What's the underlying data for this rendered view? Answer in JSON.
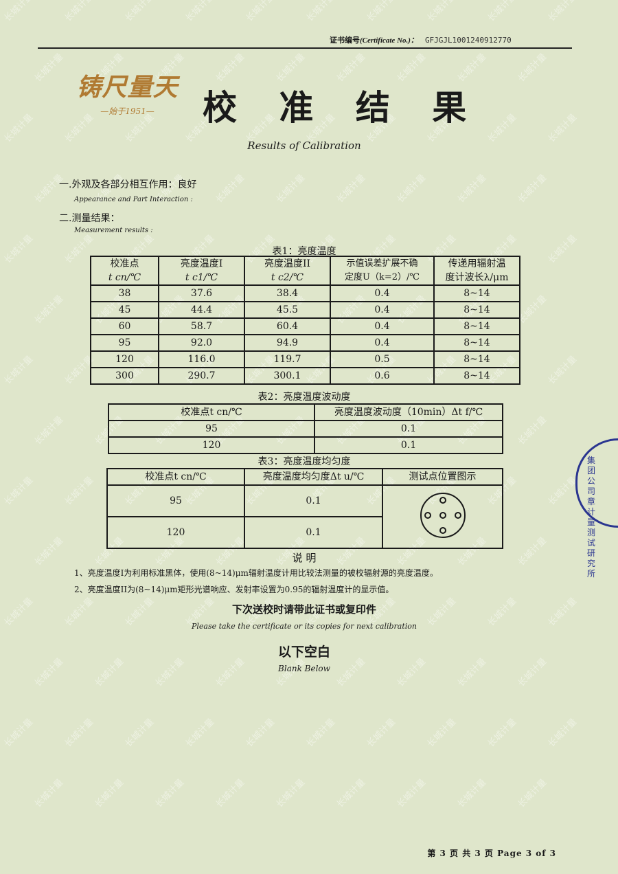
{
  "header": {
    "cert_label_cn": "证书编号",
    "cert_label_en": "(Certificate No.)：",
    "cert_no": "GFJGJL1001240912770"
  },
  "logo": {
    "text": "铸尺量天",
    "since": "—始于1951—"
  },
  "watermark": "长城计量",
  "title": "校 准 结 果",
  "subtitle": "Results of Calibration",
  "section1": {
    "cn": "一.外观及各部分相互作用：良好",
    "en": "Appearance and Part Interaction :"
  },
  "section2": {
    "cn": "二.测量结果：",
    "en": "Measurement results :"
  },
  "table1": {
    "caption": "表1：亮度温度",
    "headers": [
      [
        "校准点",
        "t cn/℃"
      ],
      [
        "亮度温度I",
        "t c1/℃"
      ],
      [
        "亮度温度II",
        "t c2/℃"
      ],
      [
        "示值误差扩展不确",
        "定度U（k=2）/℃"
      ],
      [
        "传递用辐射温",
        "度计波长λ/μm"
      ]
    ],
    "rows": [
      [
        "38",
        "37.6",
        "38.4",
        "0.4",
        "8~14"
      ],
      [
        "45",
        "44.4",
        "45.5",
        "0.4",
        "8~14"
      ],
      [
        "60",
        "58.7",
        "60.4",
        "0.4",
        "8~14"
      ],
      [
        "95",
        "92.0",
        "94.9",
        "0.4",
        "8~14"
      ],
      [
        "120",
        "116.0",
        "119.7",
        "0.5",
        "8~14"
      ],
      [
        "300",
        "290.7",
        "300.1",
        "0.6",
        "8~14"
      ]
    ]
  },
  "table2": {
    "caption": "表2：亮度温度波动度",
    "headers": [
      "校准点t cn/℃",
      "亮度温度波动度（10min）Δt f/℃"
    ],
    "rows": [
      [
        "95",
        "0.1"
      ],
      [
        "120",
        "0.1"
      ]
    ]
  },
  "table3": {
    "caption": "表3：亮度温度均匀度",
    "headers": [
      "校准点t cn/℃",
      "亮度温度均匀度Δt u/℃",
      "测试点位置图示"
    ],
    "rows": [
      [
        "95",
        "0.1"
      ],
      [
        "120",
        "0.1"
      ]
    ]
  },
  "notes": {
    "title": "说 明",
    "items": [
      "1、亮度温度I为利用标准黑体，使用(8~14)μm辐射温度计用比较法测量的被校辐射源的亮度温度。",
      "2、亮度温度II为(8~14)μm矩形光谱响应、发射率设置为0.95的辐射温度计的显示值。"
    ]
  },
  "next_cal": {
    "cn": "下次送校时请带此证书或复印件",
    "en": "Please take the certificate or its copies for next calibration"
  },
  "blank": {
    "cn": "以下空白",
    "en": "Blank Below"
  },
  "footer": "第 3 页 共 3 页  Page 3 of 3",
  "stamp": {
    "text": "集团公司 章 计量测试研究所"
  }
}
